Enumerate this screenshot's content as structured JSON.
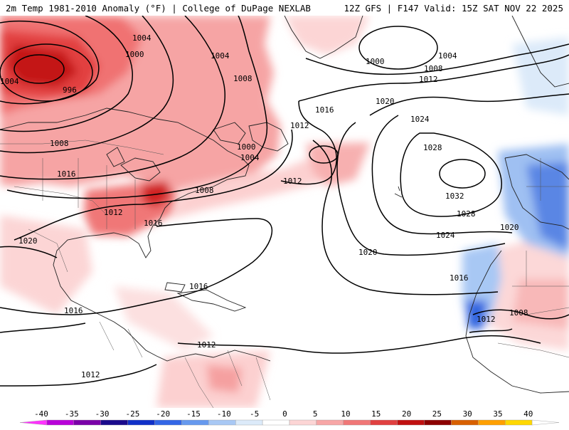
{
  "header": {
    "left": "2m Temp 1981-2010 Anomaly (°F) | College of DuPage NEXLAB",
    "right": "12Z GFS | F147 Valid: 15Z SAT NOV 22 2025"
  },
  "colorbar": {
    "ticks": [
      "-40",
      "-35",
      "-30",
      "-25",
      "-20",
      "-15",
      "-10",
      "-5",
      "0",
      "5",
      "10",
      "15",
      "20",
      "25",
      "30",
      "35",
      "40"
    ],
    "colors": [
      "#ff33ff",
      "#b800d9",
      "#7a00a8",
      "#1a0a8c",
      "#1030c8",
      "#3366e6",
      "#6699ee",
      "#a8c8f4",
      "#dceaf9",
      "#ffffff",
      "#fcd5d5",
      "#f7a6a6",
      "#f07777",
      "#e04040",
      "#c01010",
      "#8c0000",
      "#d86000",
      "#ffa000",
      "#ffd800",
      "#ffffff"
    ]
  },
  "isobars": {
    "labels": [
      "1004",
      "1004",
      "1000",
      "996",
      "1004",
      "1008",
      "1008",
      "1016",
      "1000",
      "1004",
      "1008",
      "1012",
      "1016",
      "1012",
      "1012",
      "1016",
      "1020",
      "1016",
      "1016",
      "1012",
      "1012",
      "1000",
      "1004",
      "1008",
      "1012",
      "1020",
      "1024",
      "1028",
      "1032",
      "1028",
      "1024",
      "1020",
      "1020",
      "1016",
      "1012",
      "1008"
    ]
  }
}
